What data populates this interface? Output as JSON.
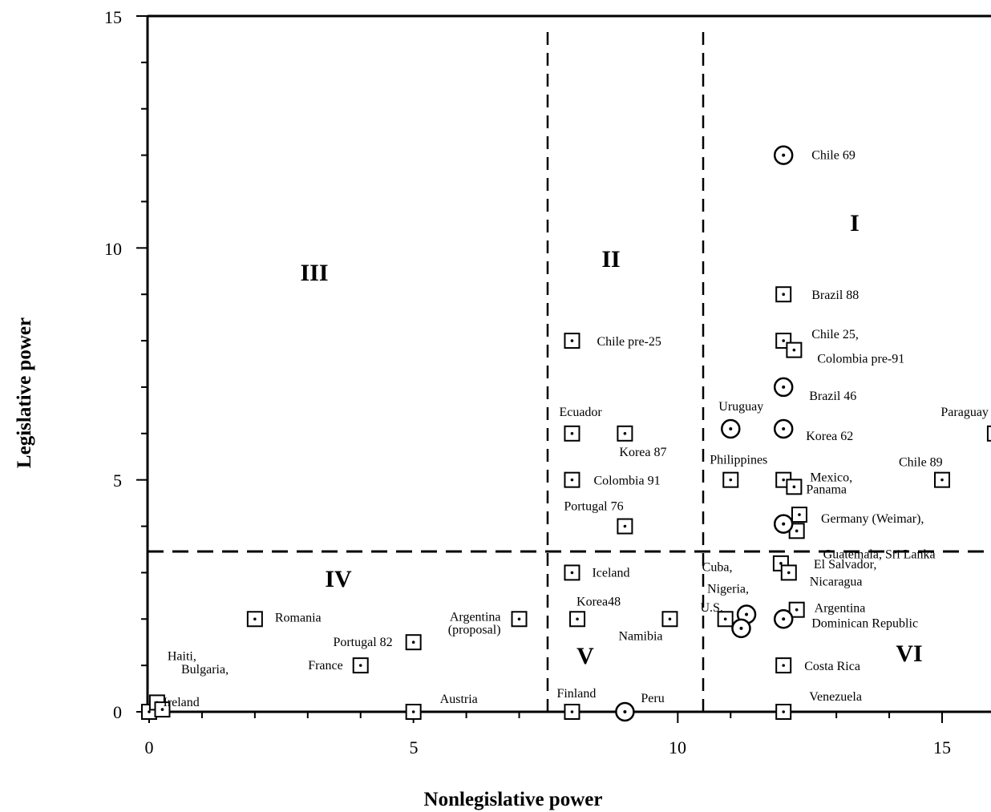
{
  "chart_data": {
    "type": "scatter",
    "xlabel": "Nonlegislative power",
    "ylabel": "Legislative power",
    "xlim": [
      0,
      16
    ],
    "ylim": [
      0,
      15
    ],
    "x_ticks": [
      "0",
      "5",
      "10",
      "15"
    ],
    "y_ticks": [
      "0",
      "5",
      "10",
      "15"
    ],
    "grid": false,
    "divider_lines": {
      "vertical_x": [
        7.5,
        10.5
      ],
      "horizontal_y": 3.5,
      "style": "dashed"
    },
    "regions": [
      {
        "id": "I",
        "label": "I"
      },
      {
        "id": "II",
        "label": "II"
      },
      {
        "id": "III",
        "label": "III"
      },
      {
        "id": "IV",
        "label": "IV"
      },
      {
        "id": "V",
        "label": "V"
      },
      {
        "id": "VI",
        "label": "VI"
      }
    ],
    "marker_types": [
      "square",
      "circle"
    ],
    "points": [
      {
        "label": "Chile 69",
        "x": 12,
        "y": 12,
        "marker": "circle"
      },
      {
        "label": "Brazil 88",
        "x": 12,
        "y": 9,
        "marker": "square"
      },
      {
        "label": "Chile 25,",
        "x": 12,
        "y": 8,
        "marker": "square"
      },
      {
        "label": "Colombia  pre-91",
        "x": 12.2,
        "y": 7.8,
        "marker": "square"
      },
      {
        "label": "Brazil 46",
        "x": 12,
        "y": 7,
        "marker": "circle"
      },
      {
        "label": "Uruguay",
        "x": 11,
        "y": 6.1,
        "marker": "circle"
      },
      {
        "label": "Korea 62",
        "x": 12,
        "y": 6.1,
        "marker": "circle"
      },
      {
        "label": "Paraguay",
        "x": 16,
        "y": 6,
        "marker": "square"
      },
      {
        "label": "Chile pre-25",
        "x": 8,
        "y": 8,
        "marker": "square"
      },
      {
        "label": "Ecuador",
        "x": 8,
        "y": 6,
        "marker": "square"
      },
      {
        "label": "Korea 87",
        "x": 9,
        "y": 6,
        "marker": "square"
      },
      {
        "label": "Colombia 91",
        "x": 8,
        "y": 5,
        "marker": "square"
      },
      {
        "label": "Portugal 76",
        "x": 9,
        "y": 4,
        "marker": "square"
      },
      {
        "label": "Philippines",
        "x": 11,
        "y": 5,
        "marker": "square"
      },
      {
        "label": "Mexico,",
        "x": 12,
        "y": 5,
        "marker": "square"
      },
      {
        "label": "Panama",
        "x": 12.2,
        "y": 4.85,
        "marker": "square"
      },
      {
        "label": "Chile 89",
        "x": 15,
        "y": 5,
        "marker": "square"
      },
      {
        "label": "Germany  (Weimar),",
        "x": 12.3,
        "y": 4.25,
        "marker": "square"
      },
      {
        "label": "Guatemala, Sri Lanka",
        "x": 12.25,
        "y": 3.9,
        "marker": "square"
      },
      {
        "label": "",
        "x": 12,
        "y": 4.05,
        "marker": "circle"
      },
      {
        "label": "El Salvador,",
        "x": 11.95,
        "y": 3.2,
        "marker": "square"
      },
      {
        "label": "Nicaragua",
        "x": 12.1,
        "y": 3,
        "marker": "square"
      },
      {
        "label": "Iceland",
        "x": 8,
        "y": 3,
        "marker": "square"
      },
      {
        "label": "Korea48",
        "x": 8.1,
        "y": 2,
        "marker": "square"
      },
      {
        "label": "Namibia",
        "x": 9.85,
        "y": 2,
        "marker": "square"
      },
      {
        "label": "Cuba,",
        "x": 10.9,
        "y": 2,
        "marker": "square"
      },
      {
        "label": "Nigeria,",
        "x": 11.3,
        "y": 2.1,
        "marker": "circle"
      },
      {
        "label": "U.S.",
        "x": 11.2,
        "y": 1.8,
        "marker": "circle"
      },
      {
        "label": "Argentina",
        "x": 12.25,
        "y": 2.2,
        "marker": "square"
      },
      {
        "label": "Dominican Republic",
        "x": 12,
        "y": 2,
        "marker": "circle"
      },
      {
        "label": "Costa Rica",
        "x": 12,
        "y": 1,
        "marker": "square"
      },
      {
        "label": "Venezuela",
        "x": 12,
        "y": 0,
        "marker": "square"
      },
      {
        "label": "Romania",
        "x": 2,
        "y": 2,
        "marker": "square"
      },
      {
        "label": "Portugal 82",
        "x": 5,
        "y": 1.5,
        "marker": "square"
      },
      {
        "label": "France",
        "x": 4,
        "y": 1,
        "marker": "square"
      },
      {
        "label": "Argentina",
        "x": 7,
        "y": 2,
        "marker": "square"
      },
      {
        "label": "(proposal)",
        "x": 7,
        "y": 2,
        "marker": "none"
      },
      {
        "label": "Bulgaria,",
        "x": 0,
        "y": 0,
        "marker": "square"
      },
      {
        "label": "Haiti,",
        "x": 0.15,
        "y": 0.2,
        "marker": "square"
      },
      {
        "label": "Ireland",
        "x": 0.25,
        "y": 0.05,
        "marker": "square"
      },
      {
        "label": "Austria",
        "x": 5,
        "y": 0,
        "marker": "square"
      },
      {
        "label": "Finland",
        "x": 8,
        "y": 0,
        "marker": "square"
      },
      {
        "label": "Peru",
        "x": 9,
        "y": 0,
        "marker": "circle"
      }
    ]
  }
}
